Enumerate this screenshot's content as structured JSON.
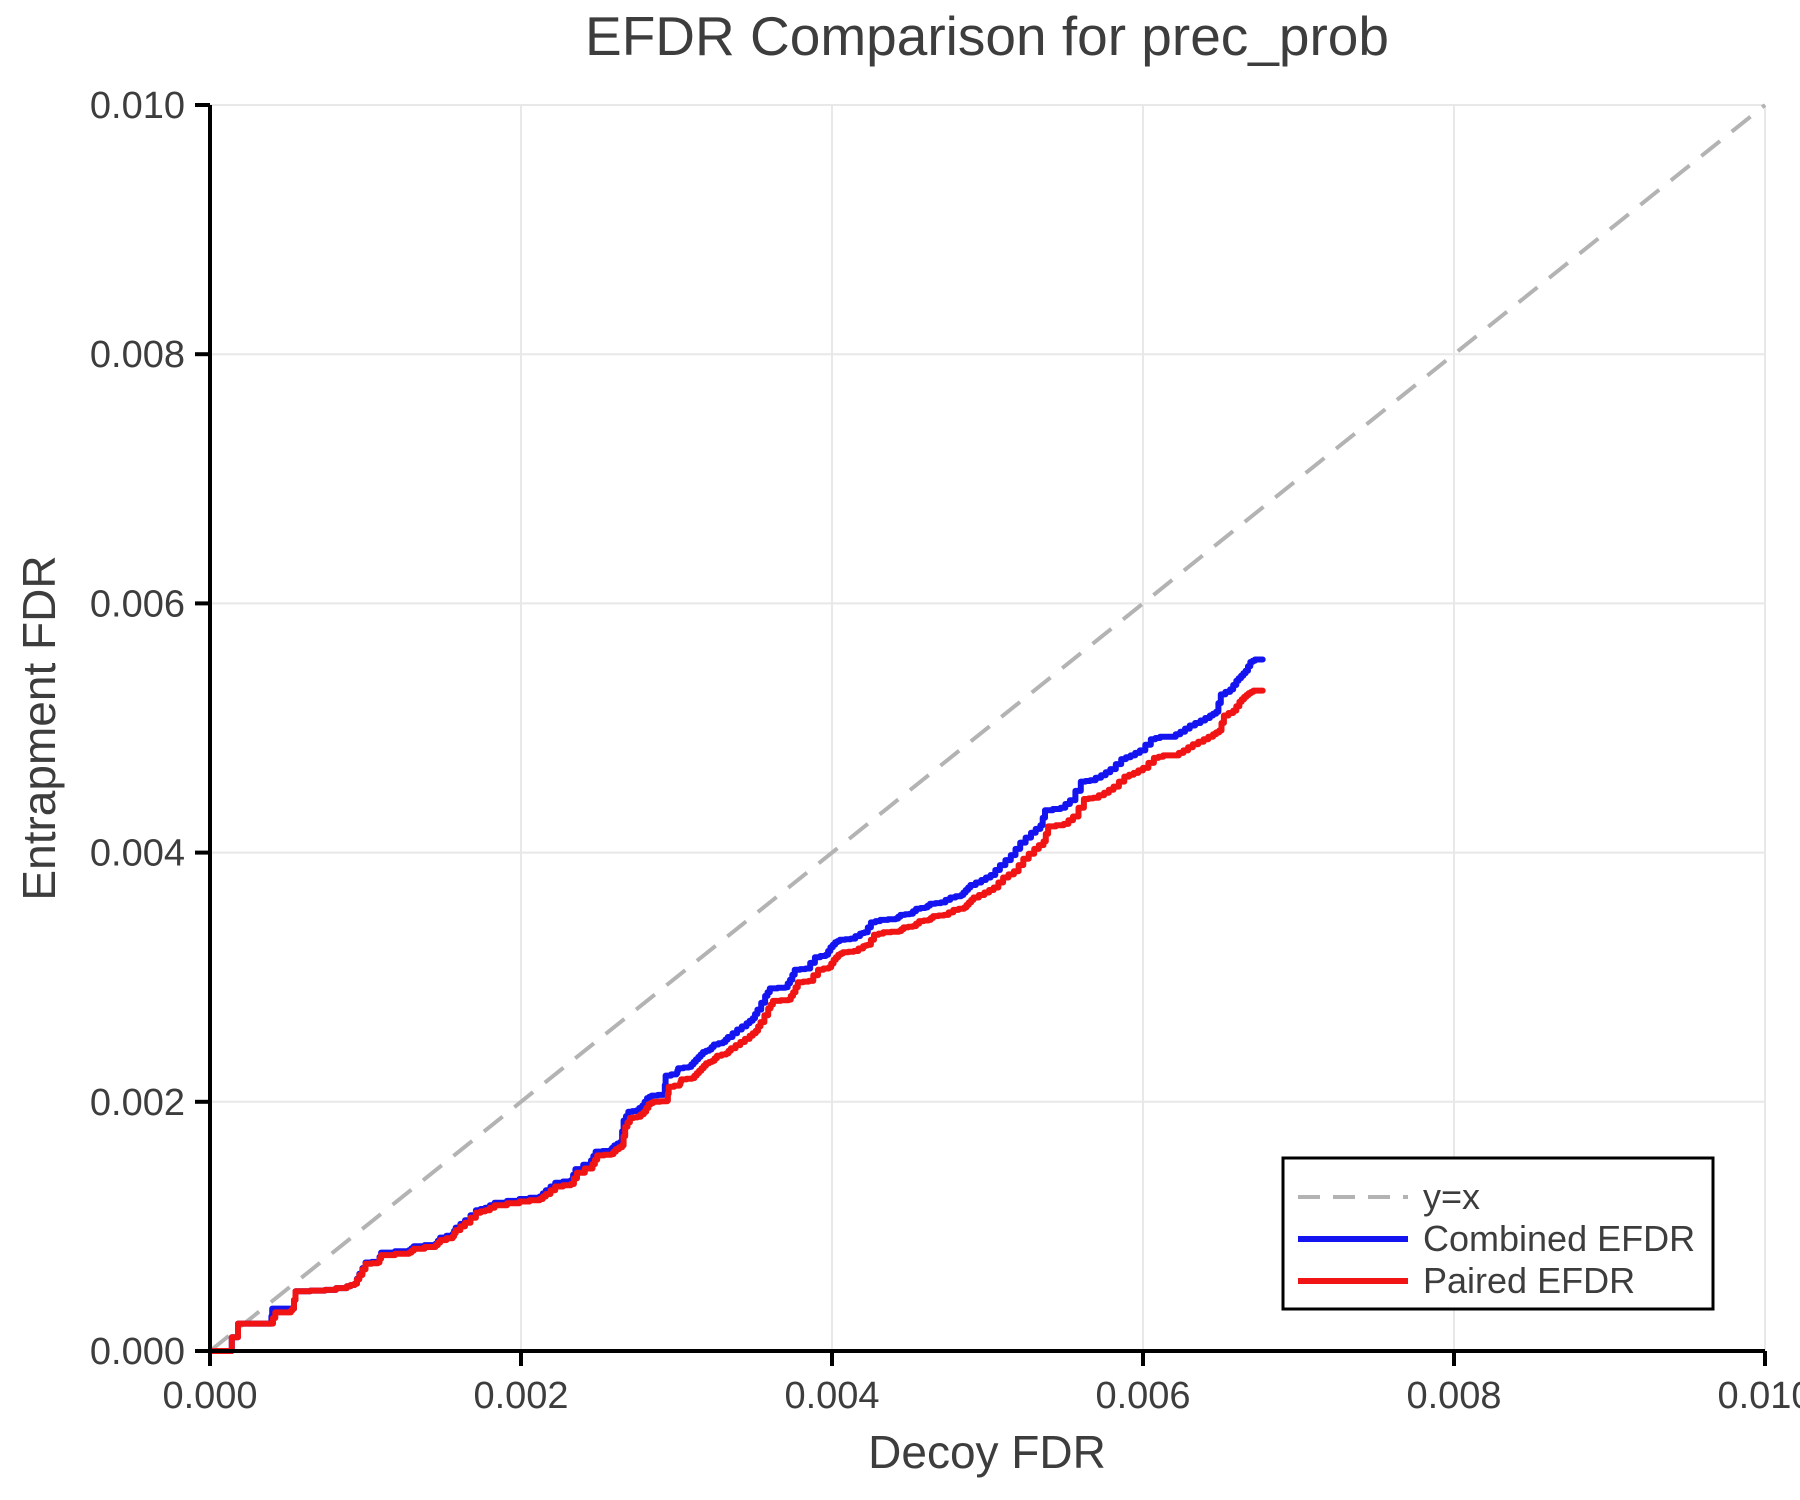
{
  "page": {
    "background": "#ffffff"
  },
  "chart_data": {
    "type": "line",
    "title": "EFDR Comparison for prec_prob",
    "xlabel": "Decoy FDR",
    "ylabel": "Entrapment FDR",
    "xlim": [
      0.0,
      0.01
    ],
    "ylim": [
      0.0,
      0.01
    ],
    "grid": true,
    "legend_position": "lower right",
    "colors": {
      "grid": "#e8e8e8",
      "axis": "#000000",
      "text": "#3d3d3d",
      "identity": "#b3b3b3",
      "combined": "#1414f0",
      "paired": "#f01414"
    },
    "x_ticks": {
      "values": [
        0.0,
        0.002,
        0.004,
        0.006,
        0.008,
        0.01
      ],
      "labels": [
        "0.000",
        "0.002",
        "0.004",
        "0.006",
        "0.008",
        "0.010"
      ]
    },
    "y_ticks": {
      "values": [
        0.0,
        0.002,
        0.004,
        0.006,
        0.008,
        0.01
      ],
      "labels": [
        "0.000",
        "0.002",
        "0.004",
        "0.006",
        "0.008",
        "0.010"
      ]
    },
    "series": [
      {
        "name": "identity",
        "label": "y=x",
        "style": "dashed",
        "color": "#b3b3b3",
        "points": [
          [
            0,
            0
          ],
          [
            0.01,
            0.01
          ]
        ]
      },
      {
        "name": "combined_efdr",
        "label": "Combined EFDR",
        "style": "stepped",
        "color": "#1414f0",
        "points": [
          [
            0,
            0
          ],
          [
            0.0001,
            0
          ],
          [
            0.00018,
            0.00022
          ],
          [
            0.00039,
            0.00022
          ],
          [
            0.0004,
            0.00034
          ],
          [
            0.00053,
            0.00034
          ],
          [
            0.00055,
            0.00048
          ],
          [
            0.00074,
            0.00049
          ],
          [
            0.00088,
            0.00052
          ],
          [
            0.00093,
            0.00054
          ],
          [
            0.00096,
            0.00062
          ],
          [
            0.001,
            0.00071
          ],
          [
            0.00108,
            0.00072
          ],
          [
            0.0011,
            0.00079
          ],
          [
            0.00128,
            0.00081
          ],
          [
            0.00131,
            0.00084
          ],
          [
            0.00145,
            0.00086
          ],
          [
            0.00148,
            0.00091
          ],
          [
            0.00156,
            0.00094
          ],
          [
            0.00158,
            0.00099
          ],
          [
            0.00164,
            0.00105
          ],
          [
            0.00171,
            0.00113
          ],
          [
            0.00177,
            0.00115
          ],
          [
            0.00183,
            0.00119
          ],
          [
            0.00199,
            0.00122
          ],
          [
            0.00212,
            0.00124
          ],
          [
            0.00216,
            0.00129
          ],
          [
            0.00222,
            0.00135
          ],
          [
            0.00232,
            0.00137
          ],
          [
            0.00235,
            0.00146
          ],
          [
            0.00245,
            0.00153
          ],
          [
            0.00248,
            0.0016
          ],
          [
            0.00257,
            0.00161
          ],
          [
            0.0026,
            0.00165
          ],
          [
            0.00264,
            0.00168
          ],
          [
            0.00266,
            0.00185
          ],
          [
            0.00269,
            0.00192
          ],
          [
            0.00274,
            0.00193
          ],
          [
            0.00278,
            0.00197
          ],
          [
            0.00281,
            0.00203
          ],
          [
            0.00284,
            0.00205
          ],
          [
            0.00292,
            0.00206
          ],
          [
            0.00293,
            0.00221
          ],
          [
            0.003,
            0.00223
          ],
          [
            0.00301,
            0.00227
          ],
          [
            0.00308,
            0.00228
          ],
          [
            0.00311,
            0.00232
          ],
          [
            0.00314,
            0.00236
          ],
          [
            0.00317,
            0.0024
          ],
          [
            0.00321,
            0.00242
          ],
          [
            0.00324,
            0.00246
          ],
          [
            0.0033,
            0.00248
          ],
          [
            0.00333,
            0.00252
          ],
          [
            0.00339,
            0.00258
          ],
          [
            0.00345,
            0.00263
          ],
          [
            0.00349,
            0.00267
          ],
          [
            0.00352,
            0.00274
          ],
          [
            0.00357,
            0.00285
          ],
          [
            0.0036,
            0.00291
          ],
          [
            0.0037,
            0.00292
          ],
          [
            0.00373,
            0.00298
          ],
          [
            0.00376,
            0.00306
          ],
          [
            0.00383,
            0.00307
          ],
          [
            0.00389,
            0.00316
          ],
          [
            0.00396,
            0.00318
          ],
          [
            0.00399,
            0.00324
          ],
          [
            0.00402,
            0.00328
          ],
          [
            0.00405,
            0.0033
          ],
          [
            0.00412,
            0.00331
          ],
          [
            0.00418,
            0.00335
          ],
          [
            0.00421,
            0.00336
          ],
          [
            0.00425,
            0.00344
          ],
          [
            0.00431,
            0.00346
          ],
          [
            0.00441,
            0.00347
          ],
          [
            0.00444,
            0.0035
          ],
          [
            0.0045,
            0.00351
          ],
          [
            0.00454,
            0.00355
          ],
          [
            0.0046,
            0.00356
          ],
          [
            0.00463,
            0.00359
          ],
          [
            0.0047,
            0.0036
          ],
          [
            0.00476,
            0.00364
          ],
          [
            0.00483,
            0.00366
          ],
          [
            0.00486,
            0.0037
          ],
          [
            0.00489,
            0.00374
          ],
          [
            0.00496,
            0.00378
          ],
          [
            0.00502,
            0.00382
          ],
          [
            0.00508,
            0.0039
          ],
          [
            0.00515,
            0.00398
          ],
          [
            0.00521,
            0.00408
          ],
          [
            0.00528,
            0.00416
          ],
          [
            0.00534,
            0.00422
          ],
          [
            0.00537,
            0.00434
          ],
          [
            0.00547,
            0.00436
          ],
          [
            0.00553,
            0.00442
          ],
          [
            0.0056,
            0.00457
          ],
          [
            0.00566,
            0.00458
          ],
          [
            0.00573,
            0.00462
          ],
          [
            0.00579,
            0.00467
          ],
          [
            0.00586,
            0.00475
          ],
          [
            0.00592,
            0.00478
          ],
          [
            0.00598,
            0.00482
          ],
          [
            0.00605,
            0.00491
          ],
          [
            0.00611,
            0.00493
          ],
          [
            0.00618,
            0.00493
          ],
          [
            0.00624,
            0.00497
          ],
          [
            0.0063,
            0.00502
          ],
          [
            0.00637,
            0.00506
          ],
          [
            0.00643,
            0.0051
          ],
          [
            0.00647,
            0.00513
          ],
          [
            0.0065,
            0.00527
          ],
          [
            0.00656,
            0.00531
          ],
          [
            0.0066,
            0.00538
          ],
          [
            0.00663,
            0.00542
          ],
          [
            0.00666,
            0.00546
          ],
          [
            0.00669,
            0.00553
          ],
          [
            0.00672,
            0.00555
          ],
          [
            0.00677,
            0.00555
          ]
        ]
      },
      {
        "name": "paired_efdr",
        "label": "Paired EFDR",
        "style": "stepped",
        "color": "#f01414",
        "points": [
          [
            0,
            0
          ],
          [
            0.0001,
            0
          ],
          [
            0.00018,
            0.00022
          ],
          [
            0.00039,
            0.00022
          ],
          [
            0.00042,
            0.00031
          ],
          [
            0.00051,
            0.00031
          ],
          [
            0.00053,
            0.00034
          ],
          [
            0.00055,
            0.00048
          ],
          [
            0.00074,
            0.00049
          ],
          [
            0.00088,
            0.00052
          ],
          [
            0.00093,
            0.00054
          ],
          [
            0.00096,
            0.00061
          ],
          [
            0.001,
            0.0007
          ],
          [
            0.00108,
            0.00071
          ],
          [
            0.0011,
            0.00077
          ],
          [
            0.00128,
            0.00079
          ],
          [
            0.00131,
            0.00082
          ],
          [
            0.00145,
            0.00085
          ],
          [
            0.00148,
            0.00089
          ],
          [
            0.00156,
            0.00092
          ],
          [
            0.00158,
            0.00097
          ],
          [
            0.00164,
            0.00103
          ],
          [
            0.00171,
            0.00111
          ],
          [
            0.00177,
            0.00113
          ],
          [
            0.00183,
            0.00117
          ],
          [
            0.00199,
            0.0012
          ],
          [
            0.00212,
            0.00122
          ],
          [
            0.00216,
            0.00126
          ],
          [
            0.00222,
            0.00132
          ],
          [
            0.00232,
            0.00134
          ],
          [
            0.00236,
            0.00143
          ],
          [
            0.00246,
            0.0015
          ],
          [
            0.00249,
            0.00157
          ],
          [
            0.00258,
            0.00158
          ],
          [
            0.00261,
            0.00162
          ],
          [
            0.00265,
            0.00165
          ],
          [
            0.00267,
            0.0018
          ],
          [
            0.0027,
            0.00187
          ],
          [
            0.00275,
            0.00188
          ],
          [
            0.00279,
            0.00192
          ],
          [
            0.00282,
            0.00198
          ],
          [
            0.00285,
            0.002
          ],
          [
            0.00294,
            0.00201
          ],
          [
            0.00295,
            0.00212
          ],
          [
            0.00302,
            0.00214
          ],
          [
            0.00303,
            0.00218
          ],
          [
            0.0031,
            0.00219
          ],
          [
            0.00313,
            0.00223
          ],
          [
            0.00316,
            0.00227
          ],
          [
            0.00319,
            0.00231
          ],
          [
            0.00323,
            0.00233
          ],
          [
            0.00326,
            0.00237
          ],
          [
            0.00332,
            0.00239
          ],
          [
            0.00335,
            0.00243
          ],
          [
            0.00341,
            0.00248
          ],
          [
            0.00347,
            0.00253
          ],
          [
            0.00351,
            0.00257
          ],
          [
            0.00354,
            0.00264
          ],
          [
            0.00359,
            0.00275
          ],
          [
            0.00362,
            0.00281
          ],
          [
            0.00372,
            0.00282
          ],
          [
            0.00375,
            0.00288
          ],
          [
            0.00378,
            0.00296
          ],
          [
            0.00385,
            0.00297
          ],
          [
            0.00391,
            0.00306
          ],
          [
            0.00398,
            0.00308
          ],
          [
            0.00401,
            0.00314
          ],
          [
            0.00404,
            0.00318
          ],
          [
            0.00407,
            0.0032
          ],
          [
            0.00414,
            0.00321
          ],
          [
            0.0042,
            0.00325
          ],
          [
            0.00423,
            0.00326
          ],
          [
            0.00427,
            0.00334
          ],
          [
            0.00433,
            0.00336
          ],
          [
            0.00443,
            0.00337
          ],
          [
            0.00446,
            0.0034
          ],
          [
            0.00452,
            0.00341
          ],
          [
            0.00456,
            0.00345
          ],
          [
            0.00462,
            0.00346
          ],
          [
            0.00465,
            0.00349
          ],
          [
            0.00472,
            0.0035
          ],
          [
            0.00478,
            0.00354
          ],
          [
            0.00485,
            0.00356
          ],
          [
            0.00488,
            0.0036
          ],
          [
            0.00491,
            0.00364
          ],
          [
            0.00498,
            0.00368
          ],
          [
            0.00504,
            0.00372
          ],
          [
            0.0051,
            0.0038
          ],
          [
            0.00517,
            0.00385
          ],
          [
            0.00523,
            0.00395
          ],
          [
            0.0053,
            0.00403
          ],
          [
            0.00536,
            0.00409
          ],
          [
            0.00539,
            0.00421
          ],
          [
            0.00549,
            0.00423
          ],
          [
            0.00555,
            0.00429
          ],
          [
            0.00562,
            0.00443
          ],
          [
            0.00568,
            0.00444
          ],
          [
            0.00575,
            0.00448
          ],
          [
            0.00581,
            0.00453
          ],
          [
            0.00588,
            0.00461
          ],
          [
            0.00594,
            0.00464
          ],
          [
            0.006,
            0.00468
          ],
          [
            0.00607,
            0.00476
          ],
          [
            0.00613,
            0.00478
          ],
          [
            0.0062,
            0.00478
          ],
          [
            0.00626,
            0.00482
          ],
          [
            0.00632,
            0.00487
          ],
          [
            0.00639,
            0.00491
          ],
          [
            0.00645,
            0.00495
          ],
          [
            0.00649,
            0.00498
          ],
          [
            0.00652,
            0.0051
          ],
          [
            0.00658,
            0.00514
          ],
          [
            0.00662,
            0.00521
          ],
          [
            0.00665,
            0.00525
          ],
          [
            0.00668,
            0.00528
          ],
          [
            0.00671,
            0.0053
          ],
          [
            0.00677,
            0.0053
          ]
        ]
      }
    ]
  }
}
